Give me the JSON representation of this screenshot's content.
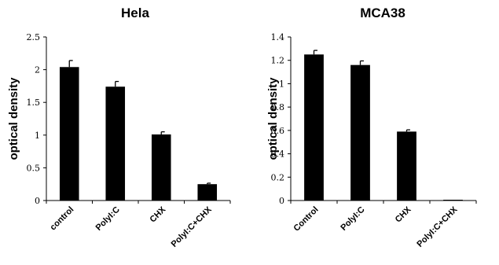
{
  "chart_data": [
    {
      "type": "bar",
      "title": "Hela",
      "ylabel": "optical density",
      "xlabel": "",
      "categories": [
        "control",
        "PolyI:C",
        "CHX",
        "PolyI:C+CHX"
      ],
      "values": [
        2.04,
        1.74,
        1.01,
        0.25
      ],
      "errors": [
        0.1,
        0.08,
        0.04,
        0.015
      ],
      "ylim": [
        0,
        2.5
      ],
      "yticks": [
        "0",
        "0.5",
        "1",
        "1.5",
        "2",
        "2.5"
      ],
      "ytick_values": [
        0,
        0.5,
        1,
        1.5,
        2,
        2.5
      ],
      "grid": false,
      "bar_color": "#000000"
    },
    {
      "type": "bar",
      "title": "MCA38",
      "ylabel": "optical density",
      "xlabel": "",
      "categories": [
        "Control",
        "PolyI:C",
        "CHX",
        "PolyI:C+CHX"
      ],
      "values": [
        1.25,
        1.16,
        0.59,
        0.005
      ],
      "errors": [
        0.035,
        0.035,
        0.015,
        0.002
      ],
      "ylim": [
        0,
        1.4
      ],
      "yticks": [
        "0",
        "0.2",
        "0.4",
        "0.6",
        "0.8",
        "1",
        "1.2",
        "1.4"
      ],
      "ytick_values": [
        0,
        0.2,
        0.4,
        0.6,
        0.8,
        1,
        1.2,
        1.4
      ],
      "grid": false,
      "bar_color": "#000000"
    }
  ]
}
